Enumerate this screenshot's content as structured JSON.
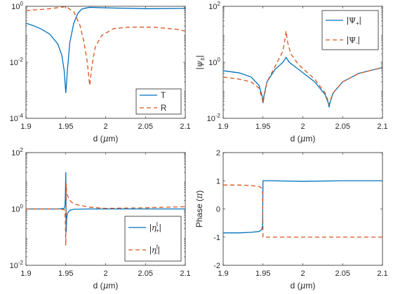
{
  "colors": {
    "solid": "#0072BD",
    "dashed": "#D95319",
    "axes": "#262626"
  },
  "chart_data": [
    {
      "type": "line",
      "panel": "top-left",
      "xlabel": "d (μm)",
      "ylabel": "",
      "xlim": [
        1.9,
        2.1
      ],
      "ylim": [
        0.0001,
        1
      ],
      "yscale": "log",
      "xticks": [
        1.9,
        1.95,
        2.0,
        2.05,
        2.1
      ],
      "xtick_labels": [
        "1.9",
        "1.95",
        "2",
        "2.05",
        "2.1"
      ],
      "yticks": [
        0.0001,
        0.01,
        1
      ],
      "ytick_labels": [
        {
          "base": "10",
          "exp": "-4"
        },
        {
          "base": "10",
          "exp": "-2"
        },
        {
          "base": "10",
          "exp": "0"
        }
      ],
      "legend_position": "bottom-right",
      "series": [
        {
          "name": "T",
          "style": "solid",
          "x": [
            1.9,
            1.91,
            1.92,
            1.93,
            1.94,
            1.945,
            1.948,
            1.95,
            1.952,
            1.955,
            1.96,
            1.965,
            1.97,
            1.98,
            2.0,
            2.05,
            2.1
          ],
          "y": [
            0.25,
            0.2,
            0.15,
            0.1,
            0.045,
            0.018,
            0.005,
            0.0008,
            0.005,
            0.05,
            0.25,
            0.55,
            0.8,
            0.92,
            0.88,
            0.82,
            0.84
          ]
        },
        {
          "name": "R",
          "style": "dashed",
          "x": [
            1.9,
            1.93,
            1.945,
            1.95,
            1.96,
            1.968,
            1.973,
            1.977,
            1.98,
            1.983,
            1.987,
            1.995,
            2.01,
            2.03,
            2.06,
            2.09,
            2.1
          ],
          "y": [
            0.7,
            0.82,
            0.93,
            0.97,
            0.65,
            0.2,
            0.05,
            0.01,
            0.0015,
            0.008,
            0.035,
            0.09,
            0.16,
            0.18,
            0.18,
            0.15,
            0.13
          ]
        }
      ]
    },
    {
      "type": "line",
      "panel": "top-right",
      "xlabel": "d (μm)",
      "ylabel": "|ψ±|",
      "xlim": [
        1.9,
        2.1
      ],
      "ylim": [
        0.01,
        100
      ],
      "yscale": "log",
      "xticks": [
        1.9,
        1.95,
        2.0,
        2.05,
        2.1
      ],
      "xtick_labels": [
        "1.9",
        "1.95",
        "2",
        "2.05",
        "2.1"
      ],
      "yticks": [
        0.01,
        1,
        100
      ],
      "ytick_labels": [
        {
          "base": "10",
          "exp": "-2"
        },
        {
          "base": "10",
          "exp": "0"
        },
        {
          "base": "10",
          "exp": "2"
        }
      ],
      "legend_position": "top-right",
      "series": [
        {
          "name": "|Ψ+|",
          "style": "solid",
          "x": [
            1.9,
            1.92,
            1.935,
            1.945,
            1.949,
            1.95,
            1.951,
            1.955,
            1.965,
            1.975,
            1.979,
            1.983,
            1.995,
            2.015,
            2.028,
            2.032,
            2.033,
            2.034,
            2.038,
            2.05,
            2.07,
            2.1
          ],
          "y": [
            0.5,
            0.42,
            0.3,
            0.15,
            0.06,
            0.035,
            0.06,
            0.2,
            0.55,
            1.0,
            1.5,
            1.0,
            0.55,
            0.2,
            0.07,
            0.035,
            0.025,
            0.035,
            0.08,
            0.2,
            0.4,
            0.65
          ]
        },
        {
          "name": "|Ψ-|",
          "style": "dashed",
          "x": [
            1.9,
            1.92,
            1.935,
            1.945,
            1.949,
            1.95,
            1.951,
            1.955,
            1.965,
            1.975,
            1.978,
            1.979,
            1.981,
            1.985,
            1.995,
            2.015,
            2.028,
            2.032,
            2.033,
            2.034,
            2.038,
            2.05,
            2.07,
            2.1
          ],
          "y": [
            0.3,
            0.25,
            0.2,
            0.12,
            0.05,
            0.035,
            0.05,
            0.2,
            0.7,
            2.5,
            8,
            13,
            5,
            2,
            0.8,
            0.25,
            0.08,
            0.04,
            0.03,
            0.04,
            0.08,
            0.2,
            0.4,
            0.65
          ]
        }
      ]
    },
    {
      "type": "line",
      "panel": "bottom-left",
      "xlabel": "d (μm)",
      "ylabel": "",
      "xlim": [
        1.9,
        2.1
      ],
      "ylim": [
        0.01,
        100
      ],
      "yscale": "log",
      "xticks": [
        1.9,
        1.95,
        2.0,
        2.05,
        2.1
      ],
      "xtick_labels": [
        "1.9",
        "1.95",
        "2",
        "2.05",
        "2.1"
      ],
      "yticks": [
        0.01,
        1,
        100
      ],
      "ytick_labels": [
        {
          "base": "10",
          "exp": "-2"
        },
        {
          "base": "10",
          "exp": "0"
        },
        {
          "base": "10",
          "exp": "2"
        }
      ],
      "legend_position": "bottom-right",
      "series": [
        {
          "name": "|η+t|",
          "style": "solid",
          "x": [
            1.9,
            1.94,
            1.948,
            1.949,
            1.9495,
            1.95,
            1.9505,
            1.951,
            1.952,
            1.955,
            1.96,
            1.98,
            2.0,
            2.05,
            2.1
          ],
          "y": [
            1.0,
            1.0,
            1.05,
            1.3,
            3,
            20,
            0.15,
            0.4,
            0.7,
            0.9,
            0.97,
            1.0,
            1.0,
            1.0,
            1.0
          ]
        },
        {
          "name": "|η-t|",
          "style": "dashed",
          "x": [
            1.9,
            1.94,
            1.948,
            1.949,
            1.9495,
            1.95,
            1.9505,
            1.951,
            1.955,
            1.96,
            1.97,
            1.98,
            2.0,
            2.05,
            2.1
          ],
          "y": [
            1.0,
            1.0,
            0.95,
            0.7,
            0.35,
            0.05,
            8,
            3.5,
            2.0,
            1.5,
            1.3,
            1.15,
            1.05,
            1.1,
            1.2
          ]
        }
      ]
    },
    {
      "type": "line",
      "panel": "bottom-right",
      "xlabel": "d (μm)",
      "ylabel": "Phase (π)",
      "xlim": [
        1.9,
        2.1
      ],
      "ylim": [
        -2,
        2
      ],
      "yscale": "linear",
      "xticks": [
        1.9,
        1.95,
        2.0,
        2.05,
        2.1
      ],
      "xtick_labels": [
        "1.9",
        "1.95",
        "2",
        "2.05",
        "2.1"
      ],
      "yticks": [
        -2,
        -1,
        0,
        1,
        2
      ],
      "ytick_labels": [
        "-2",
        "-1",
        "0",
        "1",
        "2"
      ],
      "legend_position": "none",
      "series": [
        {
          "style": "solid",
          "x": [
            1.9,
            1.92,
            1.935,
            1.945,
            1.948,
            1.9495,
            1.95,
            1.951,
            1.96,
            2.0,
            2.05,
            2.1
          ],
          "y": [
            -0.85,
            -0.85,
            -0.83,
            -0.8,
            -0.75,
            -0.6,
            1.0,
            1.0,
            1.0,
            0.98,
            1.0,
            1.0
          ]
        },
        {
          "style": "dashed",
          "x": [
            1.9,
            1.92,
            1.935,
            1.945,
            1.948,
            1.9495,
            1.95,
            1.951,
            1.96,
            2.0,
            2.05,
            2.1
          ],
          "y": [
            0.85,
            0.85,
            0.83,
            0.8,
            0.75,
            0.6,
            -1.0,
            -1.0,
            -1.0,
            -1.0,
            -1.0,
            -1.0
          ]
        }
      ]
    }
  ]
}
